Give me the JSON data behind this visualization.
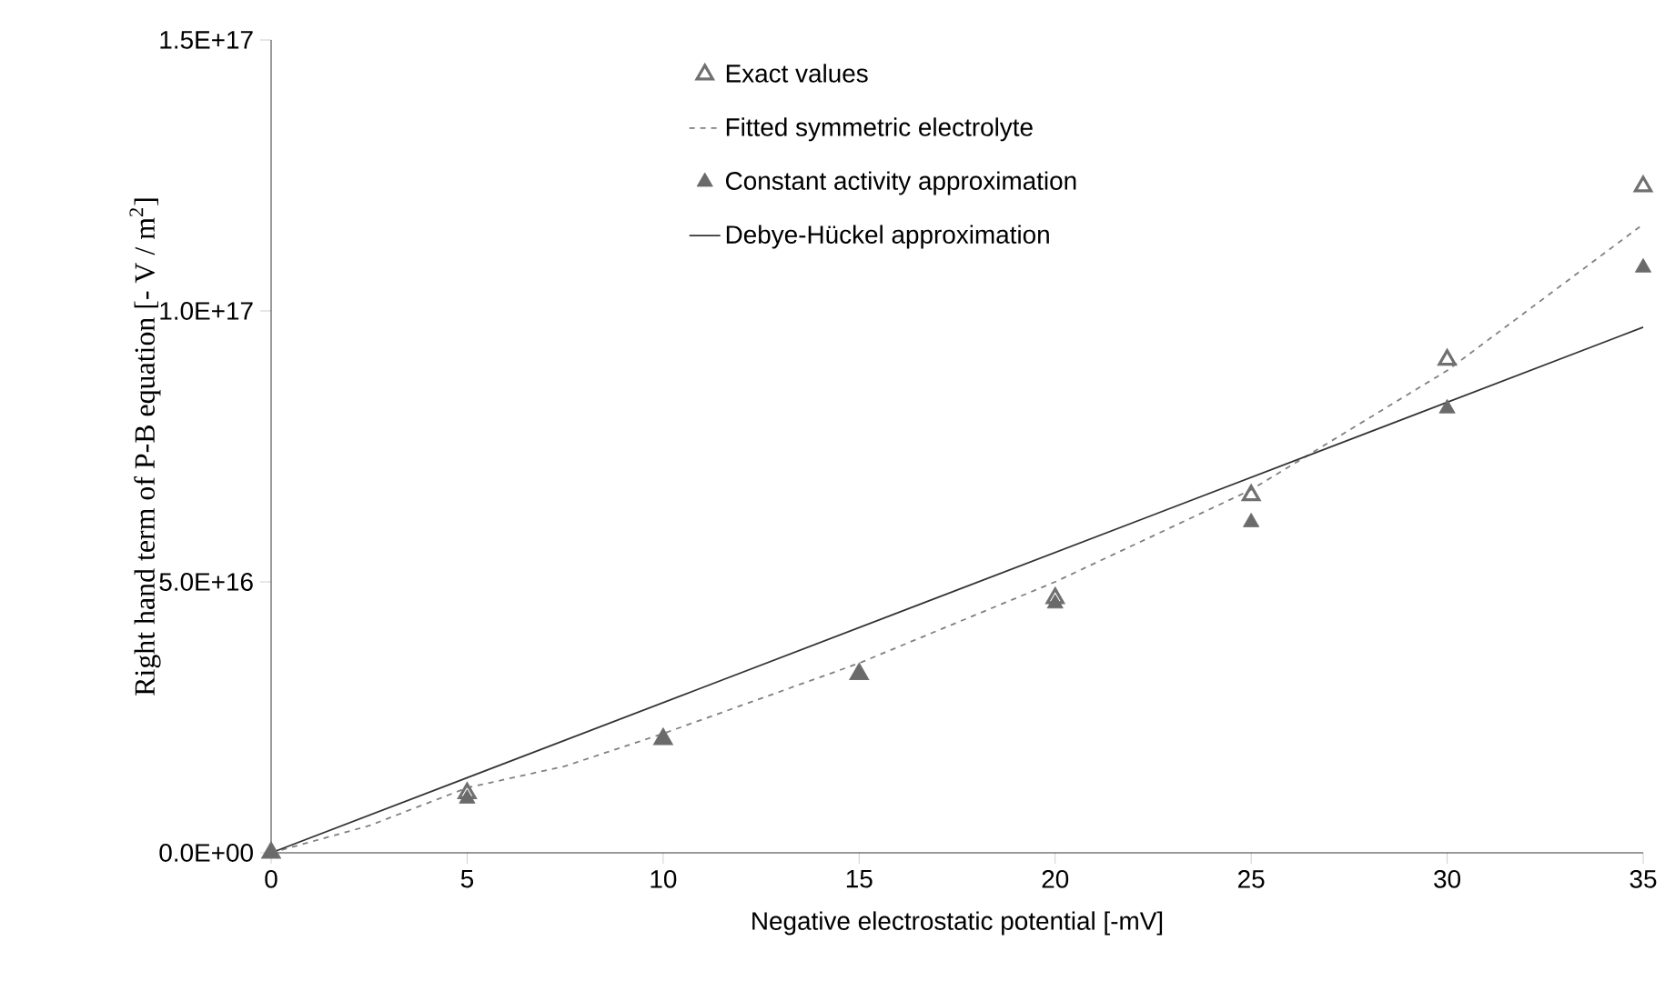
{
  "chart_data": {
    "type": "scatter",
    "xlabel": "Negative electrostatic potential [-mV]",
    "ylabel": "Right hand term of P-B equation [- V / m$^{2}$]",
    "xlim": [
      0,
      35
    ],
    "xticks": [
      0,
      5,
      10,
      15,
      20,
      25,
      30,
      35
    ],
    "ylim": [
      0,
      1.5e+17
    ],
    "yticks": [
      {
        "value": 0,
        "label": "0.0E+00"
      },
      {
        "value": 5e+16,
        "label": "5.0E+16"
      },
      {
        "value": 1e+17,
        "label": "1.0E+17"
      },
      {
        "value": 1.5e+17,
        "label": "1.5E+17"
      }
    ],
    "legend": "top",
    "series": [
      {
        "name": "Exact values",
        "marker": "triangle-open",
        "color": "#707070",
        "x": [
          0,
          5,
          10,
          15,
          20,
          25,
          30,
          35
        ],
        "values": [
          0,
          1.1e+16,
          2.1e+16,
          3.3e+16,
          4.7e+16,
          6.6e+16,
          9.1e+16,
          1.23e+17
        ]
      },
      {
        "name": "Fitted symmetric electrolyte",
        "type": "line",
        "line_style": "dashed",
        "marker": "none",
        "color": "#808080",
        "x": [
          0,
          2.5,
          5,
          7.5,
          10,
          15,
          20,
          25,
          30,
          35
        ],
        "values": [
          0,
          5000000000000000.0,
          1.2e+16,
          1.6e+16,
          2.2e+16,
          3.5e+16,
          5e+16,
          6.7e+16,
          8.9e+16,
          1.16e+17
        ]
      },
      {
        "name": "Constant activity approximation",
        "marker": "triangle",
        "color": "#6a6a6a",
        "x": [
          0,
          5,
          10,
          15,
          20,
          25,
          30,
          35
        ],
        "values": [
          0,
          1e+16,
          2.1e+16,
          3.3e+16,
          4.6e+16,
          6.1e+16,
          8.2e+16,
          1.08e+17
        ]
      },
      {
        "name": "Debye-Hückel approximation",
        "type": "line",
        "line_style": "solid",
        "marker": "none",
        "color": "#333333",
        "x": [
          0,
          35
        ],
        "values": [
          0,
          9.7e+16
        ]
      }
    ]
  }
}
